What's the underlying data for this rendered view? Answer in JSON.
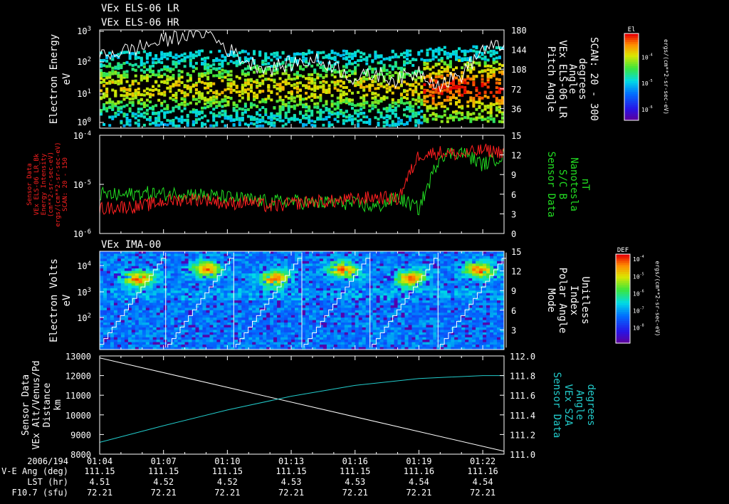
{
  "titles": {
    "els_lr": "VEx ELS-06 LR",
    "els_hr": "VEx ELS-06 HR",
    "ima": "VEx IMA-00"
  },
  "colors": {
    "background": "#000000",
    "axis": "#ffffff",
    "red": "#ff2020",
    "green": "#22dd22",
    "cyan": "#22cccc"
  },
  "panel1": {
    "ylabel_lines": [
      "Electron Energy",
      "eV"
    ],
    "right_label_lines": [
      "Pitch Angle",
      "VEx ELS-06 LR",
      "Angle",
      "degrees",
      "SCAN: 20 - 300"
    ],
    "left_ticks": [
      {
        "base": "10",
        "exp": "3"
      },
      {
        "base": "10",
        "exp": "2"
      },
      {
        "base": "10",
        "exp": "1"
      },
      {
        "base": "10",
        "exp": "0"
      }
    ],
    "right_ticks": [
      "180",
      "144",
      "108",
      "72",
      "36"
    ],
    "colorbar": {
      "label": "El",
      "unit": "ergs/(cm**2-sr-sec-eV)",
      "ticks": [
        {
          "base": "10",
          "exp": "-4"
        },
        {
          "base": "10",
          "exp": "-5"
        },
        {
          "base": "10",
          "exp": "-6"
        }
      ]
    }
  },
  "panel2": {
    "left_label_lines": [
      "Sensor Data",
      "VEx ELS-06 LR_Bk",
      "Energy Intensity",
      "(cm**2-sr-sec-eV)",
      "ergs/(cm**2-sr-sec-eV)",
      "SCAN: 20 - 150"
    ],
    "right_label_lines": [
      "Sensor Data",
      "S/C B",
      "Nanotesla",
      "nT"
    ],
    "left_ticks": [
      {
        "base": "10",
        "exp": "-4"
      },
      {
        "base": "10",
        "exp": "-5"
      },
      {
        "base": "10",
        "exp": "-6"
      }
    ],
    "right_ticks": [
      "15",
      "12",
      "9",
      "6",
      "3",
      "0"
    ]
  },
  "panel3": {
    "ylabel_lines": [
      "Electron Volts",
      "eV"
    ],
    "right_label_lines": [
      "Mode",
      "Polar Angle",
      "Index",
      "Unitless"
    ],
    "left_ticks": [
      {
        "base": "10",
        "exp": "4"
      },
      {
        "base": "10",
        "exp": "3"
      },
      {
        "base": "10",
        "exp": "2"
      }
    ],
    "right_ticks": [
      "15",
      "12",
      "9",
      "6",
      "3"
    ],
    "colorbar": {
      "label": "DEF",
      "unit": "ergs/(cm**2-sr-sec-eV)",
      "ticks": [
        {
          "base": "10",
          "exp": "-4"
        },
        {
          "base": "10",
          "exp": "-5"
        },
        {
          "base": "10",
          "exp": "-6"
        },
        {
          "base": "10",
          "exp": "-7"
        },
        {
          "base": "10",
          "exp": "-8"
        }
      ]
    }
  },
  "panel4": {
    "left_label_lines": [
      "Sensor Data",
      "VEx Alt/Venus/Pd",
      "Distance",
      "km"
    ],
    "right_label_lines": [
      "Sensor Data",
      "VEx SZA",
      "Angle",
      "degrees"
    ],
    "left_ticks": [
      "13000",
      "12000",
      "11000",
      "10000",
      "9000",
      "8000"
    ],
    "right_ticks": [
      "112.0",
      "111.8",
      "111.6",
      "111.4",
      "111.2",
      "111.0"
    ]
  },
  "footer": {
    "row_labels": [
      "2006/194",
      "V-E Ang (deg)",
      "LST (hr)",
      "F10.7 (sfu)"
    ],
    "columns": [
      {
        "time": "01:04",
        "ang": "111.15",
        "lst": "4.51",
        "f107": "72.21"
      },
      {
        "time": "01:07",
        "ang": "111.15",
        "lst": "4.52",
        "f107": "72.21"
      },
      {
        "time": "01:10",
        "ang": "111.15",
        "lst": "4.52",
        "f107": "72.21"
      },
      {
        "time": "01:13",
        "ang": "111.15",
        "lst": "4.53",
        "f107": "72.21"
      },
      {
        "time": "01:16",
        "ang": "111.15",
        "lst": "4.53",
        "f107": "72.21"
      },
      {
        "time": "01:19",
        "ang": "111.16",
        "lst": "4.54",
        "f107": "72.21"
      },
      {
        "time": "01:22",
        "ang": "111.16",
        "lst": "4.54",
        "f107": "72.21"
      }
    ]
  },
  "chart_data": [
    {
      "type": "heatmap",
      "name": "ELS electron energy spectrogram",
      "x_range": [
        "01:04",
        "01:23"
      ],
      "y_scale": "log",
      "ylim": [
        0.3,
        1000
      ],
      "z_scale": "log",
      "zlim": [
        1e-06,
        0.001
      ],
      "overlay_line": {
        "axis": "right",
        "ylim": [
          0,
          180
        ],
        "x_min": [
          0,
          1,
          2,
          3,
          4,
          5,
          6,
          7,
          8,
          9,
          10,
          11,
          12,
          13,
          14,
          15,
          16,
          17,
          18,
          19
        ],
        "values": [
          135,
          140,
          150,
          160,
          172,
          178,
          145,
          120,
          110,
          118,
          125,
          115,
          90,
          100,
          88,
          105,
          80,
          98,
          145,
          150
        ]
      }
    },
    {
      "type": "line",
      "name": "ELS energy intensity and S/C B",
      "x_range": [
        "01:04",
        "01:23"
      ],
      "series": [
        {
          "axis": "left",
          "y_scale": "log",
          "ylim": [
            1e-06,
            0.0001
          ],
          "x_min": [
            0,
            1,
            2,
            3,
            4,
            5,
            6,
            7,
            8,
            9,
            10,
            11,
            12,
            13,
            14,
            15,
            16,
            17,
            18,
            19
          ],
          "values": [
            3.2e-06,
            3.5e-06,
            3.6e-06,
            4.5e-06,
            5e-06,
            5e-06,
            4e-06,
            4.5e-06,
            3.5e-06,
            4e-06,
            4.5e-06,
            4.5e-06,
            5e-06,
            5.5e-06,
            5e-06,
            4e-05,
            4.5e-05,
            4e-05,
            5e-05,
            4.5e-05
          ]
        },
        {
          "axis": "right",
          "ylim": [
            0,
            15
          ],
          "x_min": [
            0,
            1,
            2,
            3,
            4,
            5,
            6,
            7,
            8,
            9,
            10,
            11,
            12,
            13,
            14,
            15,
            16,
            17,
            18,
            19
          ],
          "values": [
            6,
            5.8,
            6.2,
            6,
            6.2,
            5.8,
            5.5,
            5.2,
            4.8,
            5,
            4.6,
            4.8,
            4.5,
            4,
            5.5,
            3.8,
            12,
            12.5,
            10.5,
            12
          ]
        }
      ]
    },
    {
      "type": "heatmap",
      "name": "IMA electron volts spectrogram",
      "x_range": [
        "01:04",
        "01:23"
      ],
      "y_scale": "log",
      "ylim": [
        10,
        30000
      ],
      "z_scale": "log",
      "zlim": [
        1e-08,
        0.0001
      ],
      "overlay_line": {
        "axis": "right",
        "ylim": [
          0,
          15
        ],
        "description_free": true,
        "values": [
          1,
          15
        ]
      }
    },
    {
      "type": "line",
      "name": "Altitude and SZA",
      "x_range": [
        "01:04",
        "01:23"
      ],
      "series": [
        {
          "axis": "left",
          "ylim": [
            8000,
            13000
          ],
          "x_min": [
            0,
            19
          ],
          "values": [
            12900,
            8150
          ]
        },
        {
          "axis": "right",
          "ylim": [
            111.0,
            112.0
          ],
          "x_min": [
            0,
            3,
            6,
            9,
            12,
            15,
            18,
            19
          ],
          "values": [
            111.12,
            111.29,
            111.45,
            111.59,
            111.7,
            111.77,
            111.8,
            111.8
          ]
        }
      ]
    }
  ]
}
